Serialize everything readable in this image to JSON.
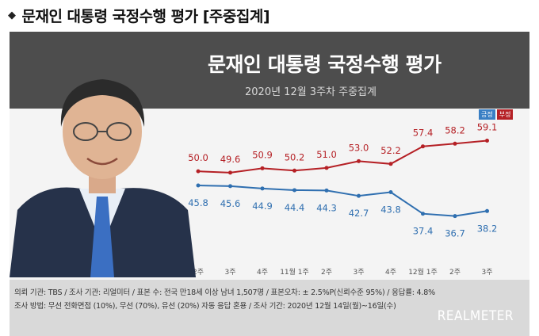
{
  "page": {
    "heading": "문재인 대통령 국정수행 평가 [주중집계]",
    "card_title": "문재인 대통령 국정수행 평가",
    "card_subtitle": "2020년 12월 3주차 주중집계"
  },
  "colors": {
    "positive": "#2f6fb0",
    "negative": "#b52025",
    "banner": "#4d4d4d",
    "footer": "#d9d9d9"
  },
  "chart_data": {
    "type": "line",
    "categories": [
      "2주",
      "3주",
      "4주",
      "11월 1주",
      "2주",
      "3주",
      "4주",
      "12월 1주",
      "2주",
      "3주"
    ],
    "series": [
      {
        "name": "부정",
        "color": "#b52025",
        "values": [
          50.0,
          49.6,
          50.9,
          50.2,
          51.0,
          53.0,
          52.2,
          57.4,
          58.2,
          59.1
        ]
      },
      {
        "name": "긍정",
        "color": "#2f6fb0",
        "values": [
          45.8,
          45.6,
          44.9,
          44.4,
          44.3,
          42.7,
          43.8,
          37.4,
          36.7,
          38.2
        ]
      }
    ],
    "legend": [
      "긍정",
      "부정"
    ],
    "legend_position": "top-right"
  },
  "footer": {
    "line1": "의뢰 기관: TBS / 조사 기관: 리얼미터 / 표본 수: 전국 만18세 이상 남녀 1,507명 / 표본오차: ± 2.5%P(신뢰수준 95%) / 응답률: 4.8%",
    "line2": "조사 방법: 무선 전화면접 (10%), 무선 (70%), 유선 (20%)  자동 응답 혼용 / 조사 기간: 2020년 12월 14일(월)~16일(수)",
    "brand": "REALMETER"
  }
}
